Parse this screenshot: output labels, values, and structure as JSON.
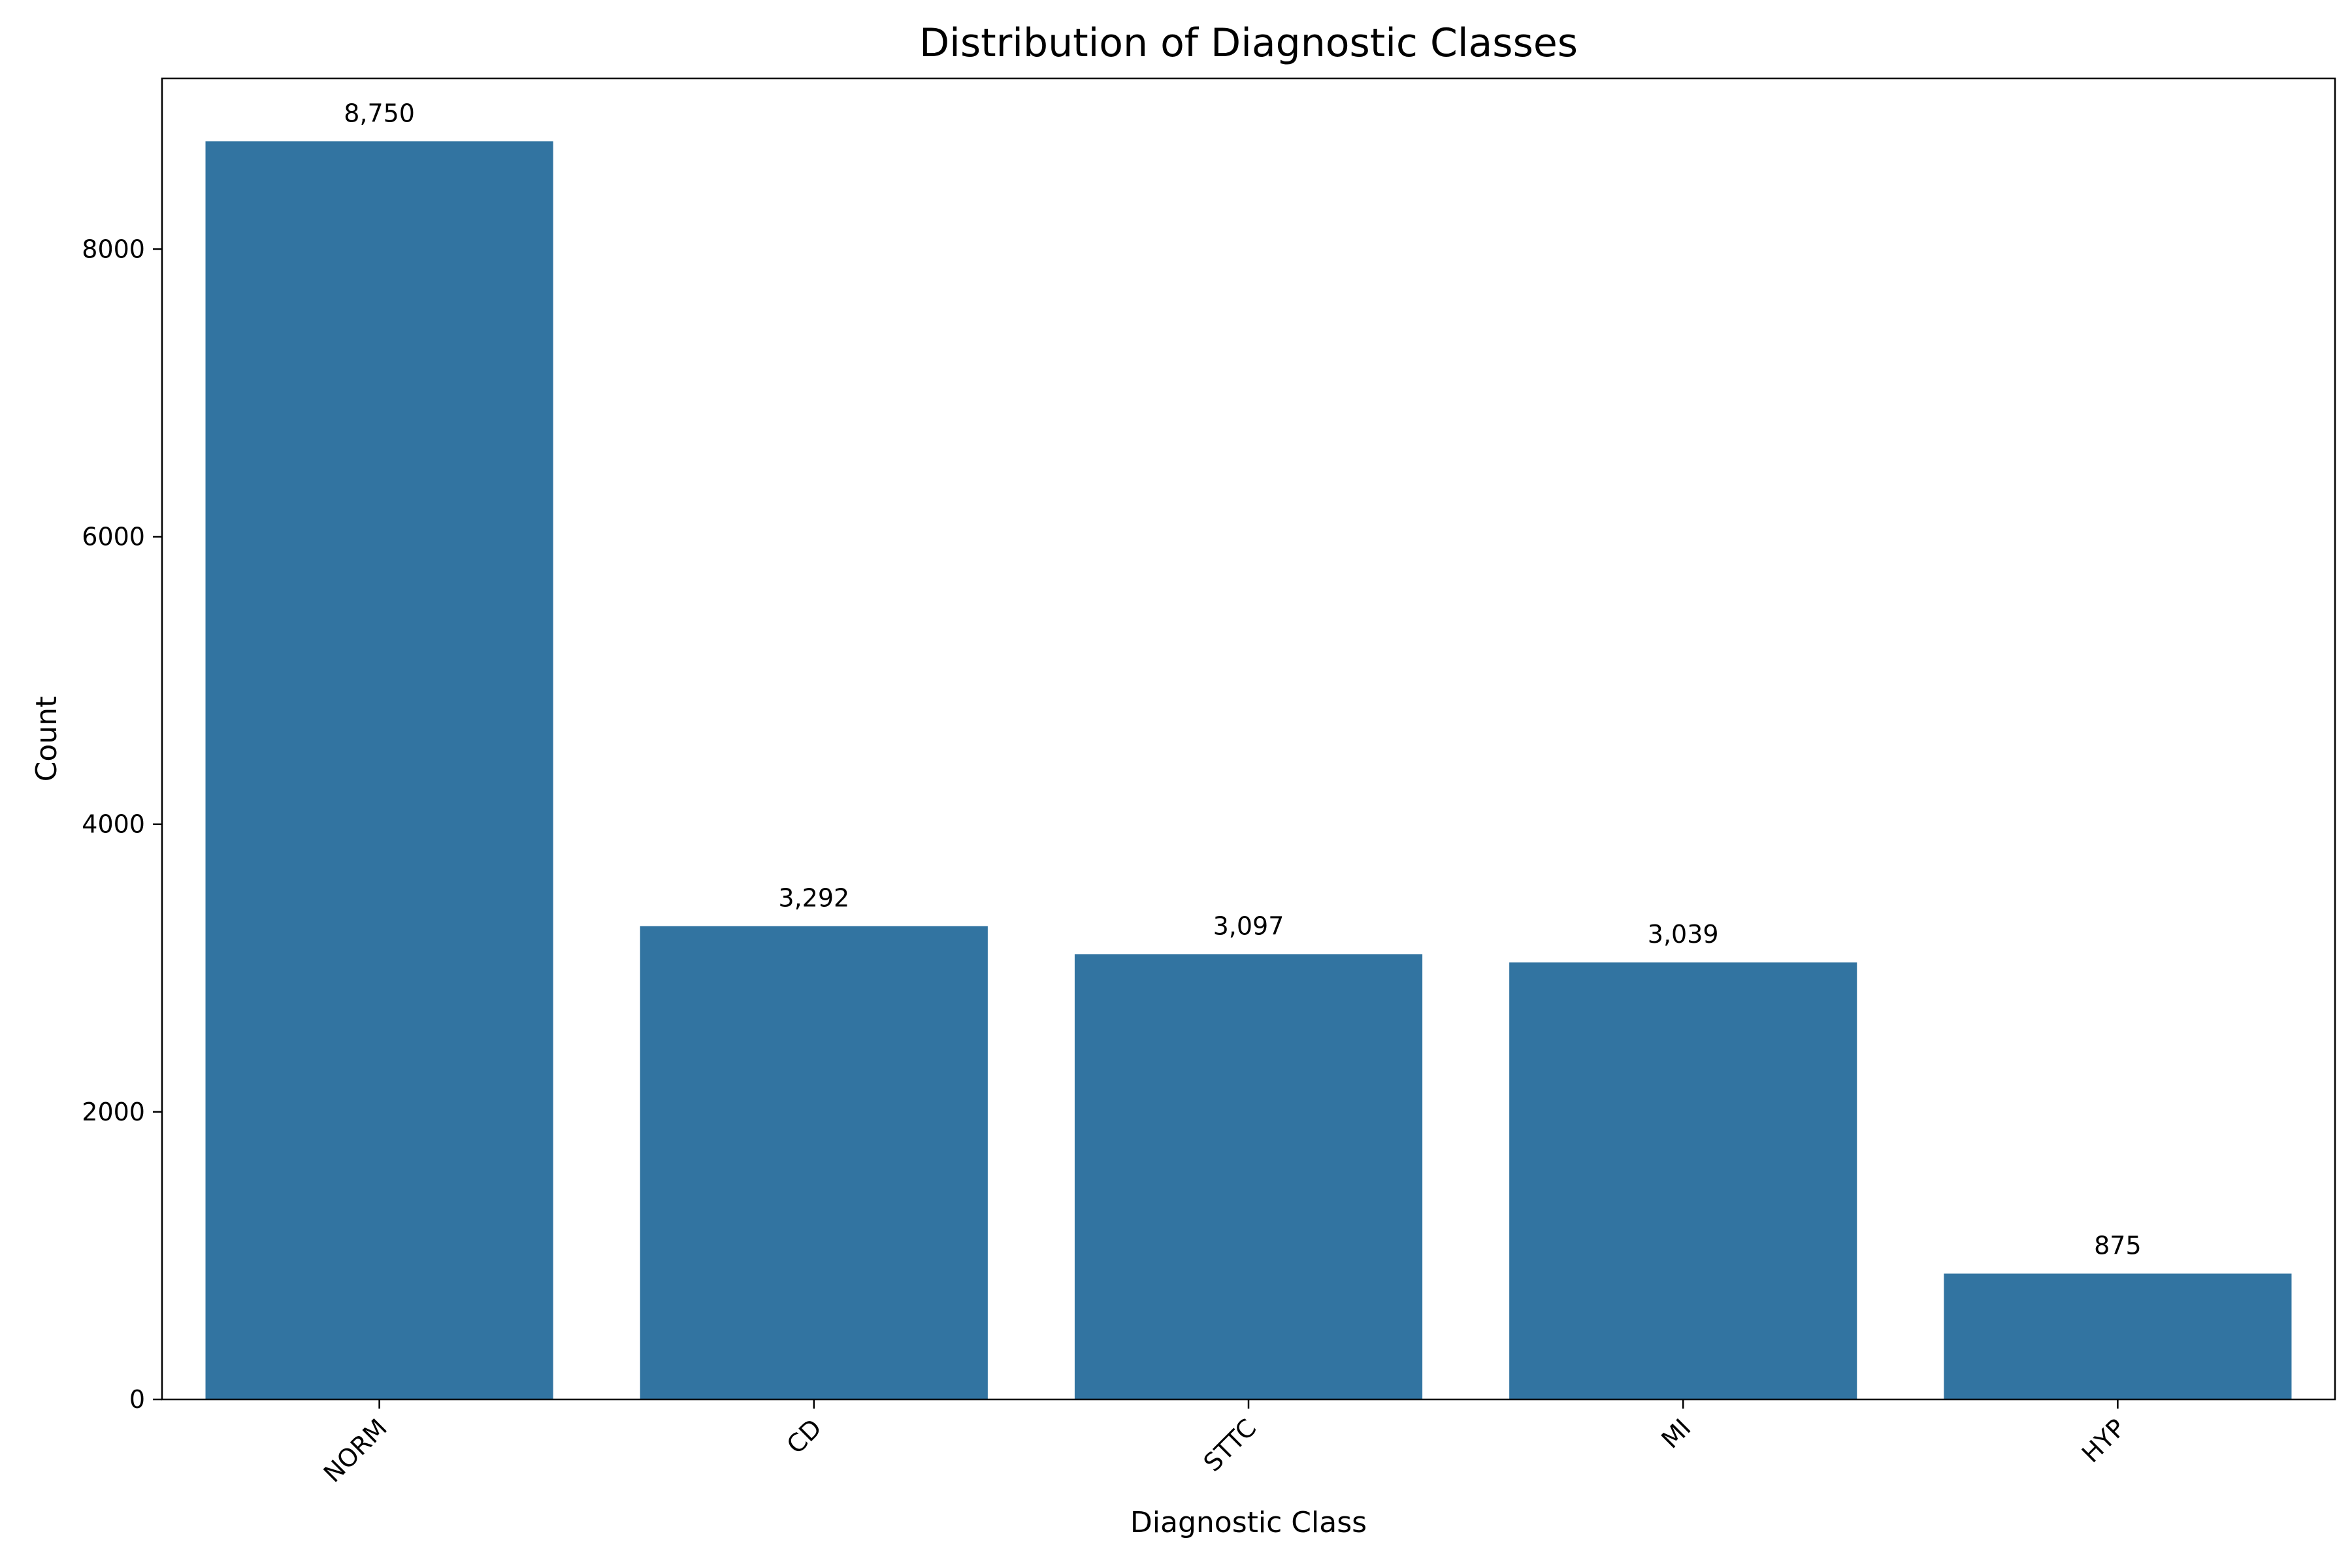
{
  "chart_data": {
    "type": "bar",
    "title": "Distribution of Diagnostic Classes",
    "xlabel": "Diagnostic Class",
    "ylabel": "Count",
    "categories": [
      "NORM",
      "CD",
      "STTC",
      "MI",
      "HYP"
    ],
    "values": [
      8750,
      3292,
      3097,
      3039,
      875
    ],
    "value_labels": [
      "8,750",
      "3,292",
      "3,097",
      "3,039",
      "875"
    ],
    "ylim": [
      0,
      9187.5
    ],
    "yticks": [
      0,
      2000,
      4000,
      6000,
      8000
    ],
    "ytick_labels": [
      "0",
      "2000",
      "4000",
      "6000",
      "8000"
    ],
    "xtick_rotation": -45,
    "grid": false,
    "bar_color": "#3274a1"
  }
}
